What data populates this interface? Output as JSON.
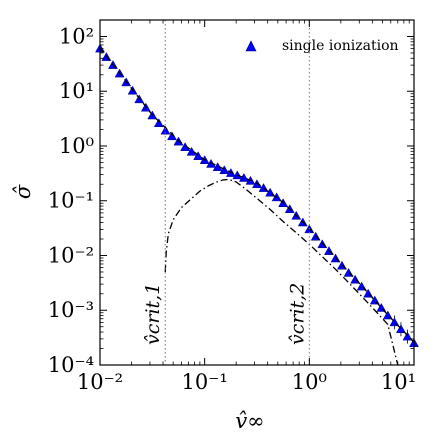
{
  "chart_data": {
    "type": "scatter",
    "title": "",
    "xlabel": "v̂∞",
    "ylabel": "σ̂",
    "xscale": "log",
    "yscale": "log",
    "xlim": [
      0.01,
      10
    ],
    "ylim": [
      0.0001,
      200
    ],
    "grid": false,
    "legend_position": "top-right",
    "x_tick_labels": [
      "10⁻²",
      "10⁻¹",
      "10⁰",
      "10¹"
    ],
    "x_ticks": [
      0.01,
      0.1,
      1,
      10
    ],
    "y_tick_labels": [
      "10⁻⁴",
      "10⁻³",
      "10⁻²",
      "10⁻¹",
      "10⁰",
      "10¹",
      "10²"
    ],
    "y_ticks": [
      0.0001,
      0.001,
      0.01,
      0.1,
      1,
      10,
      100
    ],
    "vertical_lines": [
      {
        "x": 0.042,
        "label": "v̂crit,1",
        "style": "dotted"
      },
      {
        "x": 1.0,
        "label": "v̂crit,2",
        "style": "dotted"
      }
    ],
    "series": [
      {
        "name": "single ionization",
        "marker": "triangle",
        "color": "#0000ff",
        "x": [
          0.01,
          0.0115,
          0.0133,
          0.0154,
          0.0178,
          0.0205,
          0.0237,
          0.0274,
          0.0316,
          0.0365,
          0.0422,
          0.0487,
          0.0562,
          0.065,
          0.075,
          0.0866,
          0.1,
          0.115,
          0.133,
          0.154,
          0.178,
          0.205,
          0.237,
          0.274,
          0.316,
          0.365,
          0.422,
          0.487,
          0.562,
          0.65,
          0.75,
          0.866,
          1.0,
          1.15,
          1.33,
          1.54,
          1.78,
          2.05,
          2.37,
          2.74,
          3.16,
          3.65,
          4.22,
          4.87,
          5.62,
          6.5,
          7.5,
          8.66,
          10.0
        ],
        "y": [
          60,
          42,
          30,
          21,
          14.5,
          10.2,
          7.1,
          5.0,
          3.6,
          2.6,
          1.9,
          1.5,
          1.2,
          0.95,
          0.78,
          0.65,
          0.55,
          0.47,
          0.41,
          0.36,
          0.32,
          0.29,
          0.26,
          0.23,
          0.2,
          0.17,
          0.14,
          0.115,
          0.09,
          0.07,
          0.053,
          0.04,
          0.03,
          0.022,
          0.016,
          0.012,
          0.0088,
          0.0065,
          0.0048,
          0.0036,
          0.0027,
          0.002,
          0.0015,
          0.0011,
          0.0008,
          0.0006,
          0.00045,
          0.00033,
          0.00025
        ]
      },
      {
        "name": "",
        "style": "dashed",
        "color": "#000000",
        "x": [
          0.01,
          0.0178,
          0.0316,
          0.0562,
          0.1,
          0.178,
          0.316,
          0.562,
          1.0,
          1.78,
          3.16,
          5.62,
          10.0
        ],
        "y": [
          62,
          15,
          3.7,
          1.25,
          0.56,
          0.33,
          0.21,
          0.093,
          0.031,
          0.0091,
          0.0028,
          0.00082,
          0.00026
        ]
      },
      {
        "name": "",
        "style": "dashdot",
        "color": "#000000",
        "x": [
          0.042,
          0.043,
          0.045,
          0.05,
          0.06,
          0.075,
          0.09,
          0.11,
          0.13,
          0.15,
          0.17,
          0.2,
          0.25,
          0.316,
          0.42,
          0.56,
          0.75,
          1.0,
          1.33,
          1.78,
          2.37,
          3.16,
          4.22,
          5.62,
          7.0
        ],
        "y": [
          0.005,
          0.012,
          0.025,
          0.045,
          0.075,
          0.11,
          0.15,
          0.19,
          0.22,
          0.24,
          0.245,
          0.22,
          0.16,
          0.11,
          0.07,
          0.042,
          0.026,
          0.016,
          0.0095,
          0.0056,
          0.0032,
          0.0018,
          0.001,
          0.00055,
          0.0001
        ]
      }
    ]
  }
}
